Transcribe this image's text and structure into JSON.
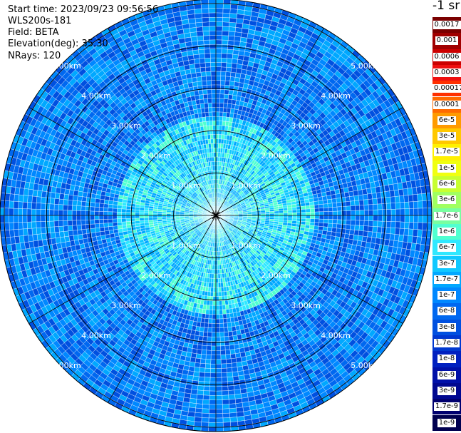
{
  "header": {
    "start_time": "Start time: 2023/09/23 09:56:56",
    "device": "WLS200s-181",
    "field": "Field: BETA",
    "elevation": "Elevation(deg): 35.30",
    "nrays": "NRays: 120"
  },
  "chart_data": {
    "type": "heatmap",
    "projection": "polar-ppi",
    "rings": [
      "1.00km",
      "2.00km",
      "3.00km",
      "4.00km",
      "5.00km"
    ],
    "ring_km": [
      1,
      2,
      3,
      4,
      5
    ],
    "max_range_km": 5.1,
    "n_rays": 120,
    "spoke_angles_deg": [
      0,
      30,
      60,
      90,
      120,
      150,
      180,
      210,
      240,
      270,
      300,
      330
    ],
    "colorbar": {
      "unit_label": "-1 sr",
      "labels": [
        "0.0017",
        "0.001",
        "0.0006",
        "0.0003",
        "0.00017",
        "0.0001",
        "6e-5",
        "3e-5",
        "1.7e-5",
        "1e-5",
        "6e-6",
        "3e-6",
        "1.7e-6",
        "1e-6",
        "6e-7",
        "3e-7",
        "1.7e-7",
        "1e-7",
        "6e-8",
        "3e-8",
        "1.7e-8",
        "1e-8",
        "6e-9",
        "3e-9",
        "1.7e-9",
        "1e-9"
      ],
      "colors": [
        "#7a0000",
        "#a00000",
        "#cc0000",
        "#ee1010",
        "#ff3000",
        "#ff6a00",
        "#ff9a00",
        "#ffc800",
        "#fff000",
        "#f0ff10",
        "#c8ff30",
        "#a0ff60",
        "#78ffa0",
        "#50ffd0",
        "#30e8ff",
        "#10c8ff",
        "#00a8ff",
        "#0088ff",
        "#0068f0",
        "#0050e0",
        "#0038d0",
        "#0020c0",
        "#0010a8",
        "#000890",
        "#000070",
        "#000050"
      ]
    },
    "dominant_levels": [
      "1.7e-7",
      "1e-7",
      "6e-8",
      "3e-8"
    ],
    "near_core_levels": [
      "1e-6",
      "6e-7",
      "3e-7",
      "1.7e-7"
    ]
  }
}
